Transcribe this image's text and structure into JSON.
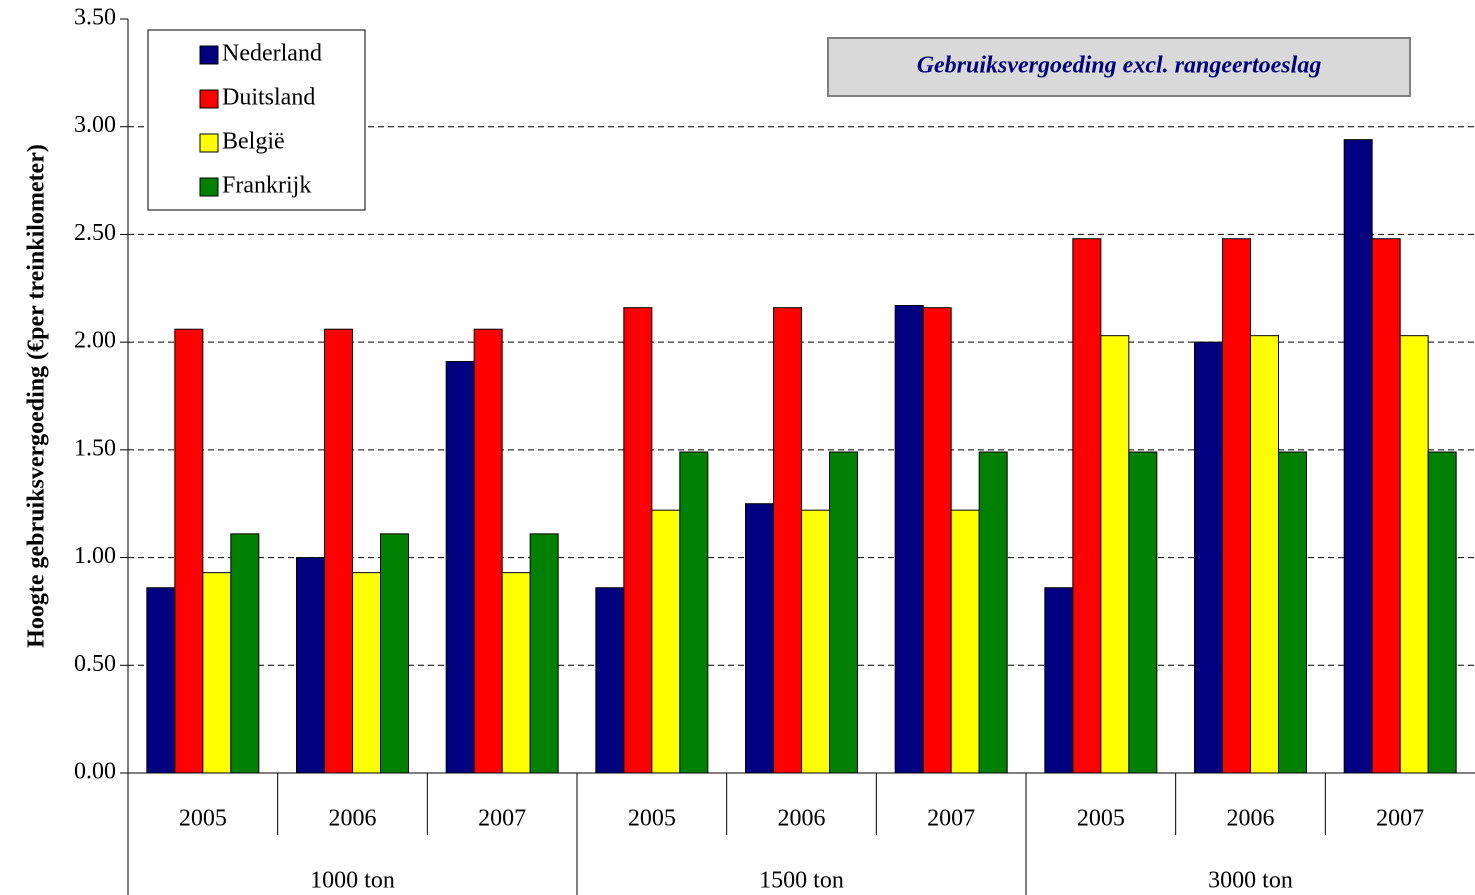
{
  "chart_data": {
    "type": "bar",
    "annotation": "Gebruiksvergoeding excl. rangeertoeslag",
    "y_label": "Hoogte gebruiksvergoeding (€per treinkilometer)",
    "categories": [
      "2005",
      "2006",
      "2007",
      "2005",
      "2006",
      "2007",
      "2005",
      "2006",
      "2007"
    ],
    "groups": [
      "1000 ton",
      "1500 ton",
      "3000 ton"
    ],
    "series": [
      {
        "name": "Nederland",
        "color": "#000080",
        "values": [
          0.86,
          1.0,
          1.91,
          0.86,
          1.25,
          2.17,
          0.86,
          2.0,
          2.94
        ]
      },
      {
        "name": "Duitsland",
        "color": "#ff0000",
        "values": [
          2.06,
          2.06,
          2.06,
          2.16,
          2.16,
          2.16,
          2.48,
          2.48,
          2.48
        ]
      },
      {
        "name": "België",
        "color": "#ffff00",
        "values": [
          0.93,
          0.93,
          0.93,
          1.22,
          1.22,
          1.22,
          2.03,
          2.03,
          2.03
        ]
      },
      {
        "name": "Frankrijk",
        "color": "#008000",
        "values": [
          1.11,
          1.11,
          1.11,
          1.49,
          1.49,
          1.49,
          1.49,
          1.49,
          1.49
        ]
      }
    ],
    "ylim": [
      0,
      3.5
    ],
    "yticks": [
      {
        "value": 0,
        "label": "0.00"
      },
      {
        "value": 0.5,
        "label": "0.50"
      },
      {
        "value": 1,
        "label": "1.00"
      },
      {
        "value": 1.5,
        "label": "1.50"
      },
      {
        "value": 2,
        "label": "2.00"
      },
      {
        "value": 2.5,
        "label": "2.50"
      },
      {
        "value": 3,
        "label": "3.00"
      },
      {
        "value": 3.5,
        "label": "3.50"
      }
    ],
    "grid": true,
    "legend": "top-left"
  }
}
